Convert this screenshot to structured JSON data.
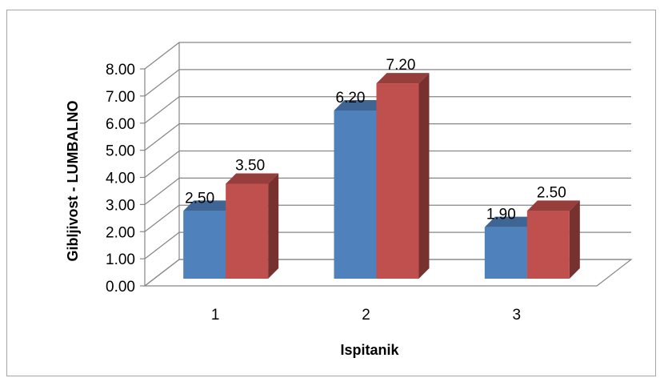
{
  "chart_data": {
    "type": "bar",
    "categories": [
      "1",
      "2",
      "3"
    ],
    "series": [
      {
        "values": [
          2.5,
          6.2,
          1.9
        ],
        "color": "#4f81bd"
      },
      {
        "values": [
          3.5,
          7.2,
          2.5
        ],
        "color": "#c0504d"
      }
    ],
    "data_labels": [
      [
        "2.50",
        "6.20",
        "1.90"
      ],
      [
        "3.50",
        "7.20",
        "2.50"
      ]
    ],
    "yticks": [
      "0.00",
      "1.00",
      "2.00",
      "3.00",
      "4.00",
      "5.00",
      "6.00",
      "7.00",
      "8.00"
    ],
    "ylim": [
      0,
      8
    ],
    "xlabel": "Ispitanik",
    "ylabel": "Gibljivost - LUMBALNO",
    "grid": true,
    "legend": "none",
    "style": "3d-clustered-column"
  }
}
